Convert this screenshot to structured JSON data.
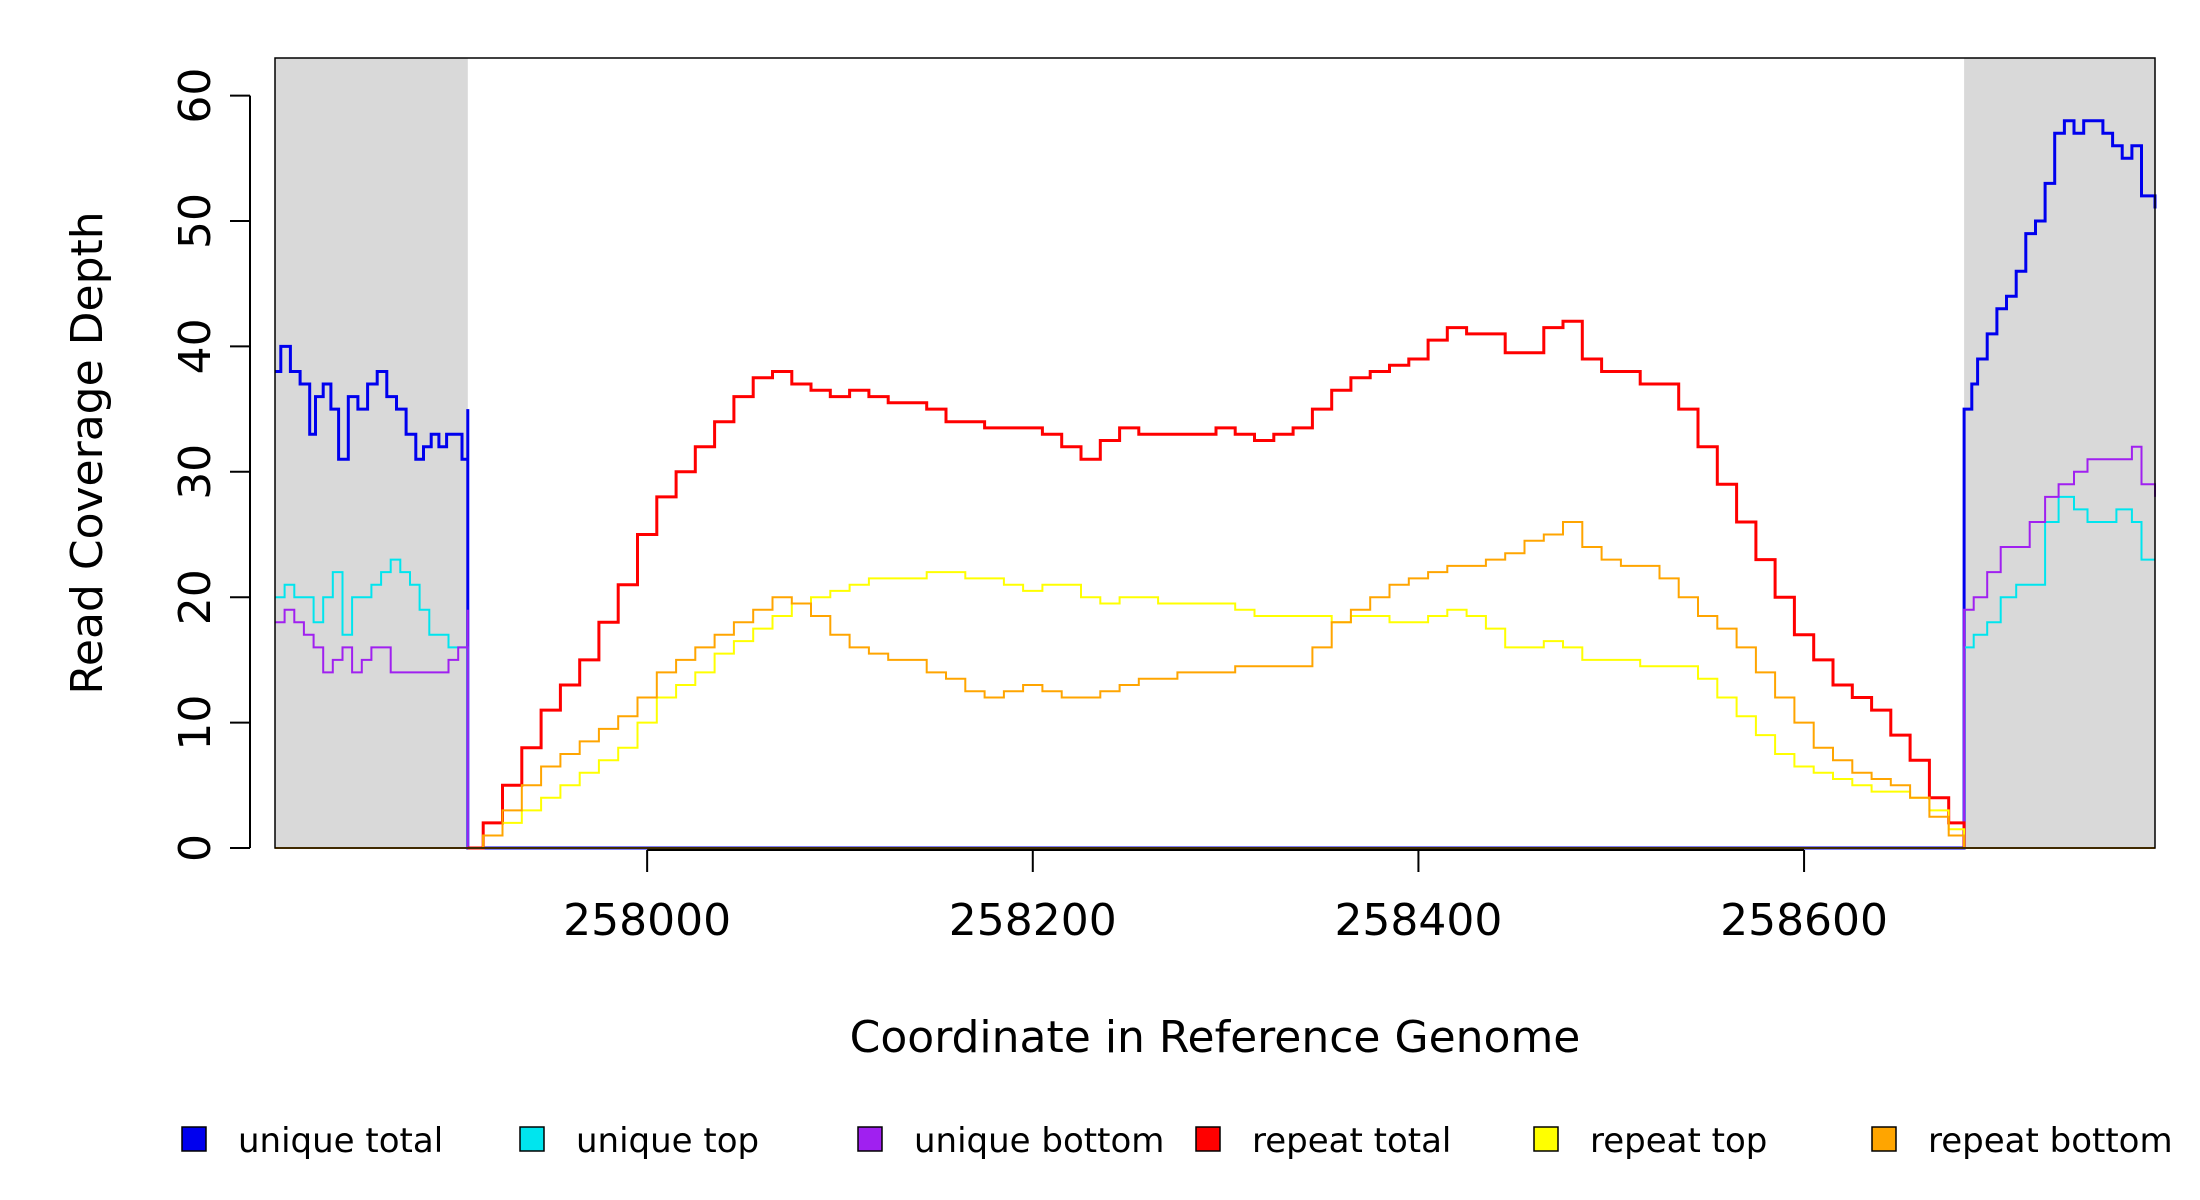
{
  "chart_data": {
    "type": "line",
    "xlabel": "Coordinate in Reference Genome",
    "ylabel": "Read Coverage Depth",
    "xlim": [
      257807,
      258782
    ],
    "ylim": [
      0,
      63
    ],
    "x_ticks": [
      258000,
      258200,
      258400,
      258600
    ],
    "y_ticks": [
      0,
      10,
      20,
      30,
      40,
      50,
      60
    ],
    "shaded_regions": [
      [
        257807,
        257907
      ],
      [
        258683,
        258782
      ]
    ],
    "shade_color": "#d9d9d9",
    "grid": false,
    "legend_position": "bottom",
    "series": [
      {
        "name": "unique total",
        "color": "#0000ee",
        "x": [
          257807,
          257810,
          257815,
          257820,
          257825,
          257828,
          257832,
          257836,
          257840,
          257845,
          257850,
          257855,
          257860,
          257865,
          257870,
          257875,
          257880,
          257884,
          257888,
          257892,
          257896,
          257900,
          257904,
          257907,
          257907,
          258683,
          258683,
          258687,
          258690,
          258695,
          258700,
          258705,
          258710,
          258715,
          258720,
          258725,
          258730,
          258735,
          258740,
          258745,
          258750,
          258755,
          258760,
          258765,
          258770,
          258775,
          258782
        ],
        "y": [
          38,
          40,
          38,
          37,
          33,
          36,
          37,
          35,
          31,
          36,
          35,
          37,
          38,
          36,
          35,
          33,
          31,
          32,
          33,
          32,
          33,
          33,
          31,
          35,
          0,
          0,
          35,
          37,
          39,
          41,
          43,
          44,
          46,
          49,
          50,
          53,
          57,
          58,
          57,
          58,
          58,
          57,
          56,
          55,
          56,
          52,
          51
        ],
        "step": true
      },
      {
        "name": "unique top",
        "color": "#00e5ee",
        "x": [
          257807,
          257812,
          257817,
          257822,
          257827,
          257832,
          257837,
          257842,
          257847,
          257852,
          257857,
          257862,
          257867,
          257872,
          257877,
          257882,
          257887,
          257892,
          257897,
          257902,
          257907,
          257907,
          258683,
          258683,
          258688,
          258695,
          258702,
          258710,
          258717,
          258725,
          258732,
          258740,
          258747,
          258755,
          258762,
          258770,
          258775,
          258782
        ],
        "y": [
          20,
          21,
          20,
          20,
          18,
          20,
          22,
          17,
          20,
          20,
          21,
          22,
          23,
          22,
          21,
          19,
          17,
          17,
          16,
          16,
          15,
          0,
          0,
          16,
          17,
          18,
          20,
          21,
          21,
          26,
          28,
          27,
          26,
          26,
          27,
          26,
          23,
          23
        ],
        "step": true
      },
      {
        "name": "unique bottom",
        "color": "#a020f0",
        "x": [
          257807,
          257812,
          257817,
          257822,
          257827,
          257832,
          257837,
          257842,
          257847,
          257852,
          257857,
          257862,
          257867,
          257872,
          257877,
          257882,
          257887,
          257892,
          257897,
          257902,
          257907,
          257907,
          258683,
          258683,
          258688,
          258695,
          258702,
          258710,
          258717,
          258725,
          258732,
          258740,
          258747,
          258755,
          258762,
          258770,
          258775,
          258782
        ],
        "y": [
          18,
          19,
          18,
          17,
          16,
          14,
          15,
          16,
          14,
          15,
          16,
          16,
          14,
          14,
          14,
          14,
          14,
          14,
          15,
          16,
          19,
          0,
          0,
          19,
          20,
          22,
          24,
          24,
          26,
          28,
          29,
          30,
          31,
          31,
          31,
          32,
          29,
          28
        ],
        "step": true
      },
      {
        "name": "repeat total",
        "color": "#ff0000",
        "x": [
          257907,
          257915,
          257925,
          257935,
          257945,
          257955,
          257965,
          257975,
          257985,
          257995,
          258005,
          258015,
          258025,
          258035,
          258045,
          258055,
          258065,
          258075,
          258085,
          258095,
          258105,
          258115,
          258125,
          258135,
          258145,
          258155,
          258165,
          258175,
          258185,
          258195,
          258205,
          258215,
          258225,
          258235,
          258245,
          258255,
          258265,
          258275,
          258285,
          258295,
          258305,
          258315,
          258325,
          258335,
          258345,
          258355,
          258365,
          258375,
          258385,
          258395,
          258405,
          258415,
          258425,
          258435,
          258445,
          258455,
          258465,
          258475,
          258485,
          258495,
          258505,
          258515,
          258525,
          258535,
          258545,
          258555,
          258565,
          258575,
          258585,
          258595,
          258605,
          258615,
          258625,
          258635,
          258645,
          258655,
          258665,
          258675,
          258683
        ],
        "y": [
          0,
          2,
          5,
          8,
          11,
          13,
          15,
          18,
          21,
          25,
          28,
          30,
          32,
          34,
          36,
          37.5,
          38,
          37,
          36.5,
          36,
          36.5,
          36,
          35.5,
          35.5,
          35,
          34,
          34,
          33.5,
          33.5,
          33.5,
          33,
          32,
          31,
          32.5,
          33.5,
          33,
          33,
          33,
          33,
          33.5,
          33,
          32.5,
          33,
          33.5,
          35,
          36.5,
          37.5,
          38,
          38.5,
          39,
          40.5,
          41.5,
          41,
          41,
          39.5,
          39.5,
          41.5,
          42,
          39,
          38,
          38,
          37,
          37,
          35,
          32,
          29,
          26,
          23,
          20,
          17,
          15,
          13,
          12,
          11,
          9,
          7,
          4,
          2,
          0
        ],
        "step": true
      },
      {
        "name": "repeat top",
        "color": "#ffff00",
        "x": [
          257907,
          257915,
          257925,
          257935,
          257945,
          257955,
          257965,
          257975,
          257985,
          257995,
          258005,
          258015,
          258025,
          258035,
          258045,
          258055,
          258065,
          258075,
          258085,
          258095,
          258105,
          258115,
          258125,
          258135,
          258145,
          258155,
          258165,
          258175,
          258185,
          258195,
          258205,
          258215,
          258225,
          258235,
          258245,
          258255,
          258265,
          258275,
          258285,
          258295,
          258305,
          258315,
          258325,
          258335,
          258345,
          258355,
          258365,
          258375,
          258385,
          258395,
          258405,
          258415,
          258425,
          258435,
          258445,
          258455,
          258465,
          258475,
          258485,
          258495,
          258505,
          258515,
          258525,
          258535,
          258545,
          258555,
          258565,
          258575,
          258585,
          258595,
          258605,
          258615,
          258625,
          258635,
          258645,
          258655,
          258665,
          258675,
          258683
        ],
        "y": [
          0,
          1,
          2,
          3,
          4,
          5,
          6,
          7,
          8,
          10,
          12,
          13,
          14,
          15.5,
          16.5,
          17.5,
          18.5,
          19.5,
          20,
          20.5,
          21,
          21.5,
          21.5,
          21.5,
          22,
          22,
          21.5,
          21.5,
          21,
          20.5,
          21,
          21,
          20,
          19.5,
          20,
          20,
          19.5,
          19.5,
          19.5,
          19.5,
          19,
          18.5,
          18.5,
          18.5,
          18.5,
          18,
          18.5,
          18.5,
          18,
          18,
          18.5,
          19,
          18.5,
          17.5,
          16,
          16,
          16.5,
          16,
          15,
          15,
          15,
          14.5,
          14.5,
          14.5,
          13.5,
          12,
          10.5,
          9,
          7.5,
          6.5,
          6,
          5.5,
          5,
          4.5,
          4.5,
          4,
          3,
          1.5,
          0
        ],
        "step": true
      },
      {
        "name": "repeat bottom",
        "color": "#ffa500",
        "x": [
          257907,
          257915,
          257925,
          257935,
          257945,
          257955,
          257965,
          257975,
          257985,
          257995,
          258005,
          258015,
          258025,
          258035,
          258045,
          258055,
          258065,
          258075,
          258085,
          258095,
          258105,
          258115,
          258125,
          258135,
          258145,
          258155,
          258165,
          258175,
          258185,
          258195,
          258205,
          258215,
          258225,
          258235,
          258245,
          258255,
          258265,
          258275,
          258285,
          258295,
          258305,
          258315,
          258325,
          258335,
          258345,
          258355,
          258365,
          258375,
          258385,
          258395,
          258405,
          258415,
          258425,
          258435,
          258445,
          258455,
          258465,
          258475,
          258485,
          258495,
          258505,
          258515,
          258525,
          258535,
          258545,
          258555,
          258565,
          258575,
          258585,
          258595,
          258605,
          258615,
          258625,
          258635,
          258645,
          258655,
          258665,
          258675,
          258683
        ],
        "y": [
          0,
          1,
          3,
          5,
          6.5,
          7.5,
          8.5,
          9.5,
          10.5,
          12,
          14,
          15,
          16,
          17,
          18,
          19,
          20,
          19.5,
          18.5,
          17,
          16,
          15.5,
          15,
          15,
          14,
          13.5,
          12.5,
          12,
          12.5,
          13,
          12.5,
          12,
          12,
          12.5,
          13,
          13.5,
          13.5,
          14,
          14,
          14,
          14.5,
          14.5,
          14.5,
          14.5,
          16,
          18,
          19,
          20,
          21,
          21.5,
          22,
          22.5,
          22.5,
          23,
          23.5,
          24.5,
          25,
          26,
          24,
          23,
          22.5,
          22.5,
          21.5,
          20,
          18.5,
          17.5,
          16,
          14,
          12,
          10,
          8,
          7,
          6,
          5.5,
          5,
          4,
          2.5,
          1,
          0
        ],
        "step": true
      }
    ]
  }
}
